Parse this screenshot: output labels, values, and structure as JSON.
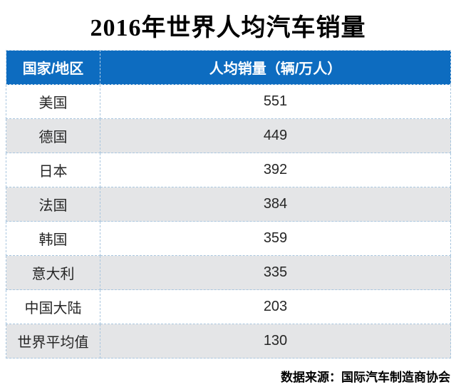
{
  "title": "2016年世界人均汽车销量",
  "table": {
    "columns": [
      "国家/地区",
      "人均销量（辆/万人）"
    ],
    "rows": [
      {
        "country": "美国",
        "value": "551"
      },
      {
        "country": "德国",
        "value": "449"
      },
      {
        "country": "日本",
        "value": "392"
      },
      {
        "country": "法国",
        "value": "384"
      },
      {
        "country": "韩国",
        "value": "359"
      },
      {
        "country": "意大利",
        "value": "335"
      },
      {
        "country": "中国大陆",
        "value": "203"
      },
      {
        "country": "世界平均值",
        "value": "130"
      }
    ]
  },
  "footer": {
    "source_label": "数据来源：国际汽车制造商协会"
  },
  "colors": {
    "header_bg": "#0d6cc0",
    "row_alt_bg": "#e4e5e7",
    "border": "#a9c6df",
    "text": "#262626",
    "header_text": "#ffffff"
  },
  "chart_data": {
    "type": "table",
    "title": "2016年世界人均汽车销量",
    "columns": [
      "国家/地区",
      "人均销量（辆/万人）"
    ],
    "categories": [
      "美国",
      "德国",
      "日本",
      "法国",
      "韩国",
      "意大利",
      "中国大陆",
      "世界平均值"
    ],
    "values": [
      551,
      449,
      392,
      384,
      359,
      335,
      203,
      130
    ],
    "unit": "辆/万人",
    "source": "数据来源：国际汽车制造商协会",
    "layout": {
      "header_position": "top",
      "zebra_striping": true,
      "grid": "dashed"
    }
  }
}
